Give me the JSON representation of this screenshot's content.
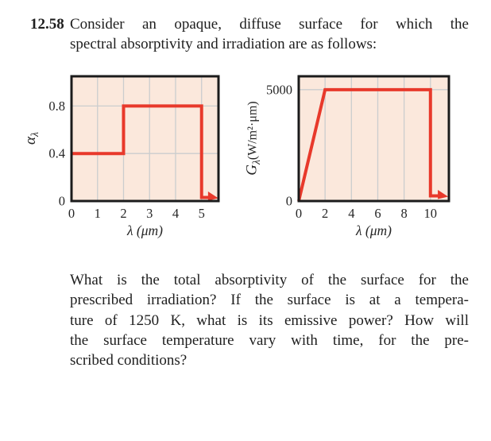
{
  "problem": {
    "number": "12.58",
    "statement_lines": [
      "Consider an opaque, diffuse surface for which the",
      "spectral absorptivity and irradiation are as follows:"
    ]
  },
  "question": {
    "lines": [
      "What is the total absorptivity of the surface for the",
      "prescribed irradiation? If the surface is at a tempera-",
      "ture of 1250 K, what is its emissive power? How will",
      "the surface temperature vary with time, for the pre-",
      "scribed conditions?"
    ]
  },
  "chart_data": [
    {
      "id": "spectral-absorptivity",
      "type": "line",
      "title": "",
      "xlabel": "λ (μm)",
      "ylabel": {
        "symbol": "α",
        "subscript": "λ",
        "units": ""
      },
      "points": [
        {
          "lambda_um": 0,
          "alpha": 0.4
        },
        {
          "lambda_um": 2,
          "alpha": 0.4
        },
        {
          "lambda_um": 2,
          "alpha": 0.8
        },
        {
          "lambda_um": 5,
          "alpha": 0.8
        },
        {
          "lambda_um": 5,
          "alpha": 0
        }
      ],
      "note": "arrow: αλ continues at ≈0 for λ > 5 μm",
      "draw": {
        "x": [
          0,
          2,
          2,
          5,
          5,
          5.28
        ],
        "y": [
          0.4,
          0.4,
          0.8,
          0.8,
          0.03,
          0.03
        ]
      },
      "xlim": [
        0,
        5.65
      ],
      "ylim": [
        0,
        1.05
      ],
      "xticks": [
        0,
        1,
        2,
        3,
        4,
        5
      ],
      "xtick_labels": [
        "0",
        "1",
        "2",
        "3",
        "4",
        "5"
      ],
      "yticks": [
        0,
        0.4,
        0.8
      ],
      "ytick_labels": [
        "0",
        "0.4",
        "0.8"
      ],
      "grid_x": [
        1,
        2,
        3,
        4,
        5
      ],
      "grid_y": [
        0.4,
        0.8
      ],
      "grid": true,
      "legend": false,
      "arrow_continues_right": true,
      "colors": {
        "line": "#e8392b",
        "bg": "#fbe8dc",
        "grid": "#cbcdce",
        "frame": "#1b1b1b"
      }
    },
    {
      "id": "spectral-irradiation",
      "type": "line",
      "title": "",
      "xlabel": "λ (μm)",
      "ylabel": {
        "symbol": "G",
        "subscript": "λ",
        "units": "(W/m²·μm)"
      },
      "points": [
        {
          "lambda_um": 0,
          "G_W_per_m2_um": 0
        },
        {
          "lambda_um": 2,
          "G_W_per_m2_um": 5000
        },
        {
          "lambda_um": 10,
          "G_W_per_m2_um": 5000
        },
        {
          "lambda_um": 10,
          "G_W_per_m2_um": 0
        }
      ],
      "note": "arrow: Gλ continues at ≈0 for λ > 10 μm",
      "draw": {
        "x": [
          0,
          2,
          10,
          10,
          10.62
        ],
        "y": [
          0,
          5000,
          5000,
          230,
          230
        ]
      },
      "xlim": [
        0,
        11.4
      ],
      "ylim": [
        0,
        5600
      ],
      "xticks": [
        0,
        2,
        4,
        6,
        8,
        10
      ],
      "xtick_labels": [
        "0",
        "2",
        "4",
        "6",
        "8",
        "10"
      ],
      "yticks": [
        0,
        5000
      ],
      "ytick_labels": [
        "0",
        "5000"
      ],
      "grid_x": [
        2,
        4,
        6,
        8,
        10
      ],
      "grid_y": [
        5000
      ],
      "grid": true,
      "legend": false,
      "arrow_continues_right": true,
      "colors": {
        "line": "#e8392b",
        "bg": "#fbe8dc",
        "grid": "#cbcdce",
        "frame": "#1b1b1b"
      }
    }
  ]
}
